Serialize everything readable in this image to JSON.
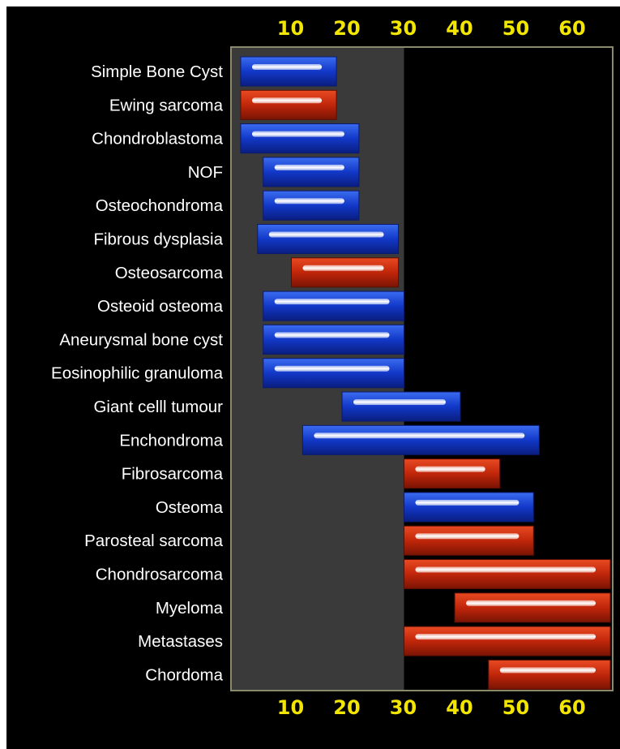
{
  "colors": {
    "background": "#000000",
    "plot_area": "#3a3a3a",
    "plot_border": "#8a8a6a",
    "tick_label": "#f2e600",
    "category_label": "#ffffff",
    "benign": "#1a3fd0",
    "malignant": "#c22a0c"
  },
  "chart_data": {
    "type": "bar",
    "orientation": "horizontal-range",
    "title": "",
    "xlabel": "",
    "ylabel": "",
    "x_ticks": [
      "10",
      "20",
      "30",
      "40",
      "50",
      "60"
    ],
    "x_tick_values": [
      10,
      20,
      30,
      40,
      50,
      60
    ],
    "xlim": [
      0,
      68
    ],
    "shaded_range": [
      0,
      30
    ],
    "grid": false,
    "legend": "none",
    "categories": [
      "Simple Bone Cyst",
      "Ewing sarcoma",
      "Chondroblastoma",
      "NOF",
      "Osteochondroma",
      "Fibrous dysplasia",
      "Osteosarcoma",
      "Osteoid osteoma",
      "Aneurysmal bone cyst",
      "Eosinophilic granuloma",
      "Giant celll tumour",
      "Enchondroma",
      "Fibrosarcoma",
      "Osteoma",
      "Parosteal sarcoma",
      "Chondrosarcoma",
      "Myeloma",
      "Metastases",
      "Chordoma"
    ],
    "ranges": [
      [
        1,
        18
      ],
      [
        1,
        18
      ],
      [
        1,
        22
      ],
      [
        5,
        22
      ],
      [
        5,
        22
      ],
      [
        4,
        29
      ],
      [
        10,
        29
      ],
      [
        5,
        30
      ],
      [
        5,
        30
      ],
      [
        5,
        30
      ],
      [
        19,
        40
      ],
      [
        12,
        54
      ],
      [
        30,
        47
      ],
      [
        30,
        53
      ],
      [
        30,
        53
      ],
      [
        30,
        68
      ],
      [
        39,
        68
      ],
      [
        30,
        68
      ],
      [
        45,
        68
      ]
    ],
    "kinds": [
      "benign",
      "malignant",
      "benign",
      "benign",
      "benign",
      "benign",
      "malignant",
      "benign",
      "benign",
      "benign",
      "benign",
      "benign",
      "malignant",
      "benign",
      "malignant",
      "malignant",
      "malignant",
      "malignant",
      "malignant"
    ]
  }
}
